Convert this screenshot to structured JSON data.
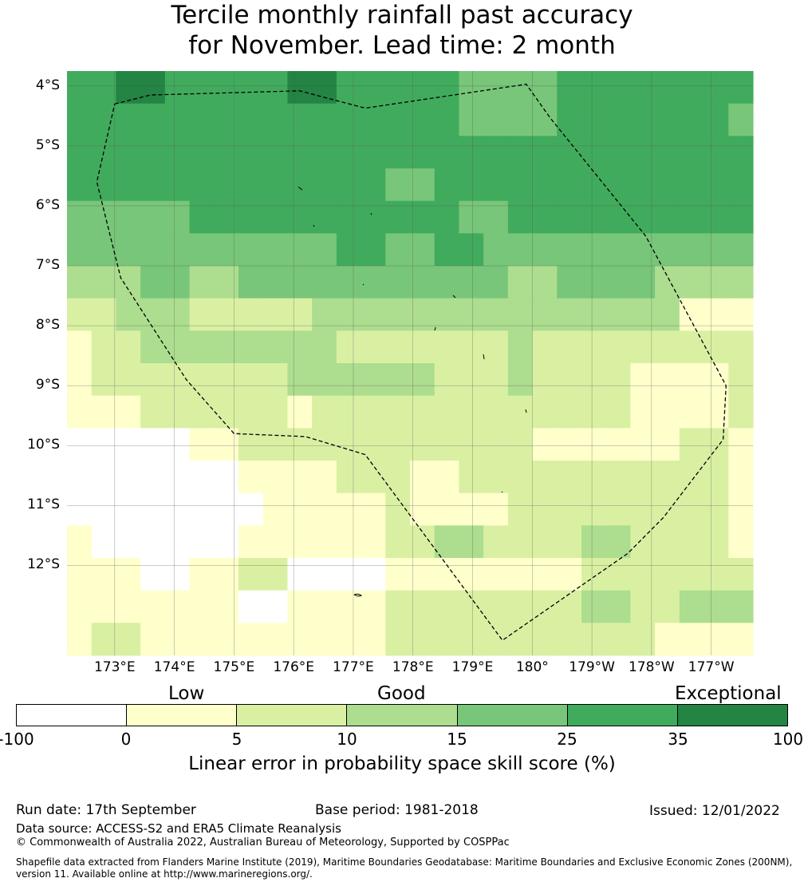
{
  "title_line1": "Tercile monthly rainfall past accuracy",
  "title_line2": "for November. Lead time: 2 month",
  "lat_labels": [
    "4°S",
    "5°S",
    "6°S",
    "7°S",
    "8°S",
    "9°S",
    "10°S",
    "11°S",
    "12°S"
  ],
  "lon_labels": [
    "173°E",
    "174°E",
    "175°E",
    "176°E",
    "177°E",
    "178°E",
    "179°E",
    "180°",
    "179°W",
    "178°W",
    "177°W"
  ],
  "colorbar": {
    "levels": [
      "Low",
      "Good",
      "Exceptional"
    ],
    "ticks": [
      "-100",
      "0",
      "5",
      "10",
      "15",
      "25",
      "35",
      "100"
    ],
    "colors": [
      "#ffffff",
      "#ffffcc",
      "#d9f0a3",
      "#addd8e",
      "#78c679",
      "#41ab5d",
      "#238443"
    ],
    "label": "Linear error in probability space skill score (%)"
  },
  "grid": {
    "lon_range": [
      172.2,
      183.7
    ],
    "lat_range": [
      -13.5,
      -3.75
    ],
    "rows": [
      [
        5,
        5,
        6,
        6,
        5,
        5,
        5,
        5,
        5,
        6,
        6,
        5,
        5,
        5,
        5,
        5,
        4,
        4,
        4,
        4,
        5,
        5,
        5,
        5,
        5,
        5,
        5,
        5
      ],
      [
        5,
        5,
        5,
        5,
        5,
        5,
        5,
        5,
        5,
        5,
        5,
        5,
        5,
        5,
        5,
        5,
        4,
        4,
        4,
        4,
        5,
        5,
        5,
        5,
        5,
        5,
        5,
        4
      ],
      [
        5,
        5,
        5,
        5,
        5,
        5,
        5,
        5,
        5,
        5,
        5,
        5,
        5,
        5,
        5,
        5,
        5,
        5,
        5,
        5,
        5,
        5,
        5,
        5,
        5,
        5,
        5,
        5
      ],
      [
        5,
        5,
        5,
        5,
        5,
        5,
        5,
        5,
        5,
        5,
        5,
        5,
        5,
        4,
        4,
        5,
        5,
        5,
        5,
        5,
        5,
        5,
        5,
        5,
        5,
        5,
        5,
        5
      ],
      [
        4,
        4,
        4,
        4,
        4,
        5,
        5,
        5,
        5,
        5,
        5,
        5,
        5,
        5,
        5,
        5,
        4,
        4,
        5,
        5,
        5,
        5,
        5,
        5,
        5,
        5,
        5,
        5
      ],
      [
        4,
        4,
        4,
        4,
        4,
        4,
        4,
        4,
        4,
        4,
        4,
        5,
        5,
        4,
        4,
        5,
        5,
        4,
        4,
        4,
        4,
        4,
        4,
        4,
        4,
        4,
        4,
        4
      ],
      [
        3,
        3,
        3,
        4,
        4,
        3,
        3,
        4,
        4,
        4,
        4,
        4,
        4,
        4,
        4,
        4,
        4,
        4,
        3,
        3,
        4,
        4,
        4,
        4,
        3,
        3,
        3,
        3
      ],
      [
        2,
        2,
        3,
        3,
        3,
        2,
        2,
        2,
        2,
        2,
        3,
        3,
        3,
        3,
        3,
        3,
        3,
        3,
        3,
        3,
        3,
        3,
        3,
        3,
        3,
        1,
        1,
        1
      ],
      [
        1,
        2,
        2,
        3,
        3,
        3,
        3,
        3,
        3,
        3,
        3,
        2,
        2,
        2,
        2,
        2,
        2,
        2,
        3,
        2,
        2,
        2,
        2,
        2,
        2,
        2,
        2,
        2
      ],
      [
        1,
        2,
        2,
        2,
        2,
        2,
        2,
        2,
        2,
        3,
        3,
        3,
        3,
        3,
        3,
        2,
        2,
        2,
        3,
        2,
        2,
        2,
        2,
        1,
        1,
        1,
        1,
        2
      ],
      [
        1,
        1,
        1,
        2,
        2,
        2,
        2,
        2,
        2,
        1,
        2,
        2,
        2,
        2,
        2,
        2,
        2,
        2,
        2,
        2,
        2,
        2,
        2,
        1,
        1,
        1,
        1,
        2
      ],
      [
        0,
        0,
        0,
        0,
        0,
        1,
        1,
        2,
        2,
        2,
        2,
        2,
        2,
        2,
        2,
        2,
        2,
        2,
        2,
        1,
        1,
        1,
        1,
        1,
        1,
        2,
        2,
        1
      ],
      [
        0,
        0,
        0,
        0,
        0,
        0,
        0,
        1,
        1,
        1,
        1,
        2,
        2,
        2,
        1,
        1,
        2,
        2,
        2,
        2,
        2,
        2,
        2,
        2,
        2,
        2,
        2,
        1
      ],
      [
        0,
        0,
        0,
        0,
        0,
        0,
        0,
        0,
        1,
        1,
        1,
        1,
        1,
        2,
        1,
        1,
        1,
        1,
        2,
        2,
        2,
        2,
        2,
        2,
        2,
        2,
        2,
        1
      ],
      [
        1,
        0,
        0,
        0,
        0,
        0,
        0,
        1,
        1,
        1,
        1,
        1,
        1,
        2,
        2,
        3,
        3,
        2,
        2,
        2,
        2,
        3,
        3,
        2,
        2,
        2,
        2,
        1
      ],
      [
        1,
        1,
        1,
        0,
        0,
        1,
        1,
        2,
        2,
        0,
        0,
        0,
        0,
        1,
        1,
        1,
        1,
        1,
        1,
        1,
        1,
        2,
        2,
        2,
        2,
        2,
        2,
        2
      ],
      [
        1,
        1,
        1,
        1,
        1,
        1,
        1,
        0,
        0,
        1,
        1,
        1,
        1,
        2,
        2,
        2,
        2,
        2,
        2,
        2,
        2,
        3,
        3,
        2,
        2,
        3,
        3,
        3
      ],
      [
        1,
        2,
        2,
        1,
        1,
        1,
        1,
        1,
        1,
        1,
        1,
        1,
        1,
        2,
        2,
        2,
        2,
        2,
        2,
        2,
        2,
        2,
        2,
        2,
        1,
        1,
        1,
        1
      ]
    ]
  },
  "eez_boundary": [
    [
      173,
      -4.3
    ],
    [
      173.6,
      -4.15
    ],
    [
      176.1,
      -4.08
    ],
    [
      177.2,
      -4.37
    ],
    [
      179.9,
      -3.97
    ],
    [
      180.3,
      -4.53
    ],
    [
      181.9,
      -6.5
    ],
    [
      183.25,
      -9.0
    ],
    [
      183.2,
      -9.9
    ],
    [
      182.2,
      -11.2
    ],
    [
      181.6,
      -11.8
    ],
    [
      179.5,
      -13.25
    ],
    [
      177.2,
      -10.15
    ],
    [
      176.2,
      -9.85
    ],
    [
      175,
      -9.8
    ],
    [
      174.2,
      -8.9
    ],
    [
      173.1,
      -7.2
    ],
    [
      172.7,
      -5.6
    ],
    [
      173,
      -4.3
    ]
  ],
  "footer": {
    "run_date": "Run date: 17th September",
    "base_period": "Base period: 1981-2018",
    "issued": "Issued: 12/01/2022",
    "data_source": "Data source: ACCESS-S2 and ERA5 Climate Reanalysis",
    "copyright": "© Commonwealth of Australia 2022, Australian Bureau of Meteorology, Supported by COSPPac",
    "shapefile_line1": "Shapefile data extracted from Flanders Marine Institute (2019), Maritime Boundaries Geodatabase: Maritime Boundaries and Exclusive Economic Zones (200NM),",
    "shapefile_line2": "version 11. Available online at http://www.marineregions.org/."
  }
}
